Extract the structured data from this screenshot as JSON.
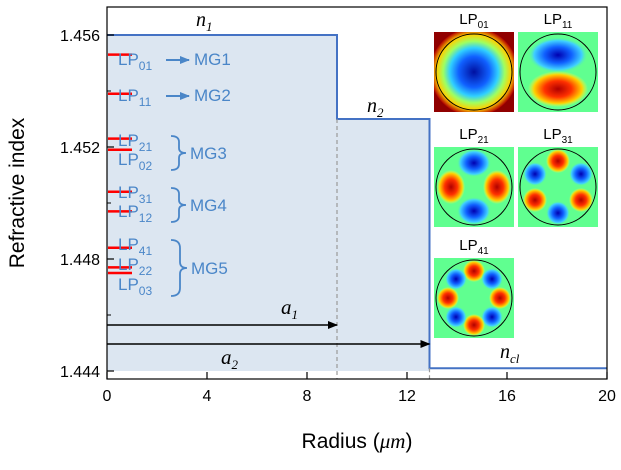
{
  "axes": {
    "ylabel": "Refractive index",
    "xlabel_prefix": "Radius (",
    "xlabel_unit": "μm",
    "xlabel_suffix": ")",
    "xlim": [
      0,
      20
    ],
    "ylim": [
      1.444,
      1.4565
    ],
    "xticks": [
      "0",
      "4",
      "8",
      "12",
      "16",
      "20"
    ],
    "yticks": [
      "1.444",
      "1.448",
      "1.452",
      "1.456"
    ]
  },
  "profile": {
    "fill_color": "#dce6f1",
    "line_color": "#4472c4",
    "a1": 9.2,
    "a2": 12.9,
    "n1": 1.456,
    "n2": 1.453,
    "ncl": 1.4441,
    "labels": {
      "n1": "n",
      "n1_sub": "1",
      "n2": "n",
      "n2_sub": "2",
      "ncl": "n",
      "ncl_sub": "cl",
      "a1": "a",
      "a1_sub": "1",
      "a2": "a",
      "a2_sub": "2"
    }
  },
  "mode_lines": {
    "color": "#ff0000",
    "neff": [
      1.4553,
      1.4539,
      1.4523,
      1.4519,
      1.4504,
      1.4497,
      1.4484,
      1.4477,
      1.4475
    ]
  },
  "mode_groups": [
    {
      "modes": [
        [
          "LP",
          "01"
        ]
      ],
      "name": "MG1",
      "connector": "arrow"
    },
    {
      "modes": [
        [
          "LP",
          "11"
        ]
      ],
      "name": "MG2",
      "connector": "arrow"
    },
    {
      "modes": [
        [
          "LP",
          "21"
        ],
        [
          "LP",
          "02"
        ]
      ],
      "name": "MG3",
      "connector": "brace"
    },
    {
      "modes": [
        [
          "LP",
          "31"
        ],
        [
          "LP",
          "12"
        ]
      ],
      "name": "MG4",
      "connector": "brace"
    },
    {
      "modes": [
        [
          "LP",
          "41"
        ],
        [
          "LP",
          "22"
        ],
        [
          "LP",
          "03"
        ]
      ],
      "name": "MG5",
      "connector": "brace"
    }
  ],
  "mode_images": [
    {
      "name": "LP",
      "sub": "01"
    },
    {
      "name": "LP",
      "sub": "11"
    },
    {
      "name": "LP",
      "sub": "21"
    },
    {
      "name": "LP",
      "sub": "31"
    },
    {
      "name": "LP",
      "sub": "41"
    }
  ]
}
